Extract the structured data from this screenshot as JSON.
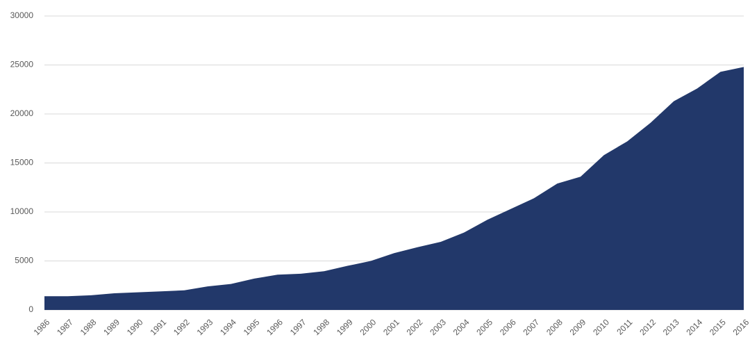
{
  "chart_data": {
    "type": "area",
    "categories": [
      "1986",
      "1987",
      "1988",
      "1989",
      "1990",
      "1991",
      "1992",
      "1993",
      "1994",
      "1995",
      "1996",
      "1997",
      "1998",
      "1999",
      "2000",
      "2001",
      "2002",
      "2003",
      "2004",
      "2005",
      "2006",
      "2007",
      "2008",
      "2009",
      "2010",
      "2011",
      "2012",
      "2013",
      "2014",
      "2015",
      "2016"
    ],
    "values": [
      1400,
      1400,
      1500,
      1700,
      1800,
      1900,
      2000,
      2400,
      2650,
      3200,
      3600,
      3700,
      3950,
      4500,
      5000,
      5800,
      6400,
      6950,
      7900,
      9200,
      10300,
      11400,
      12900,
      13600,
      15800,
      17200,
      19100,
      21300,
      22600,
      24300,
      24800
    ],
    "color": "#22386a",
    "ylim": [
      0,
      30000
    ],
    "yticks": [
      0,
      5000,
      10000,
      15000,
      20000,
      25000,
      30000
    ],
    "grid": true
  }
}
